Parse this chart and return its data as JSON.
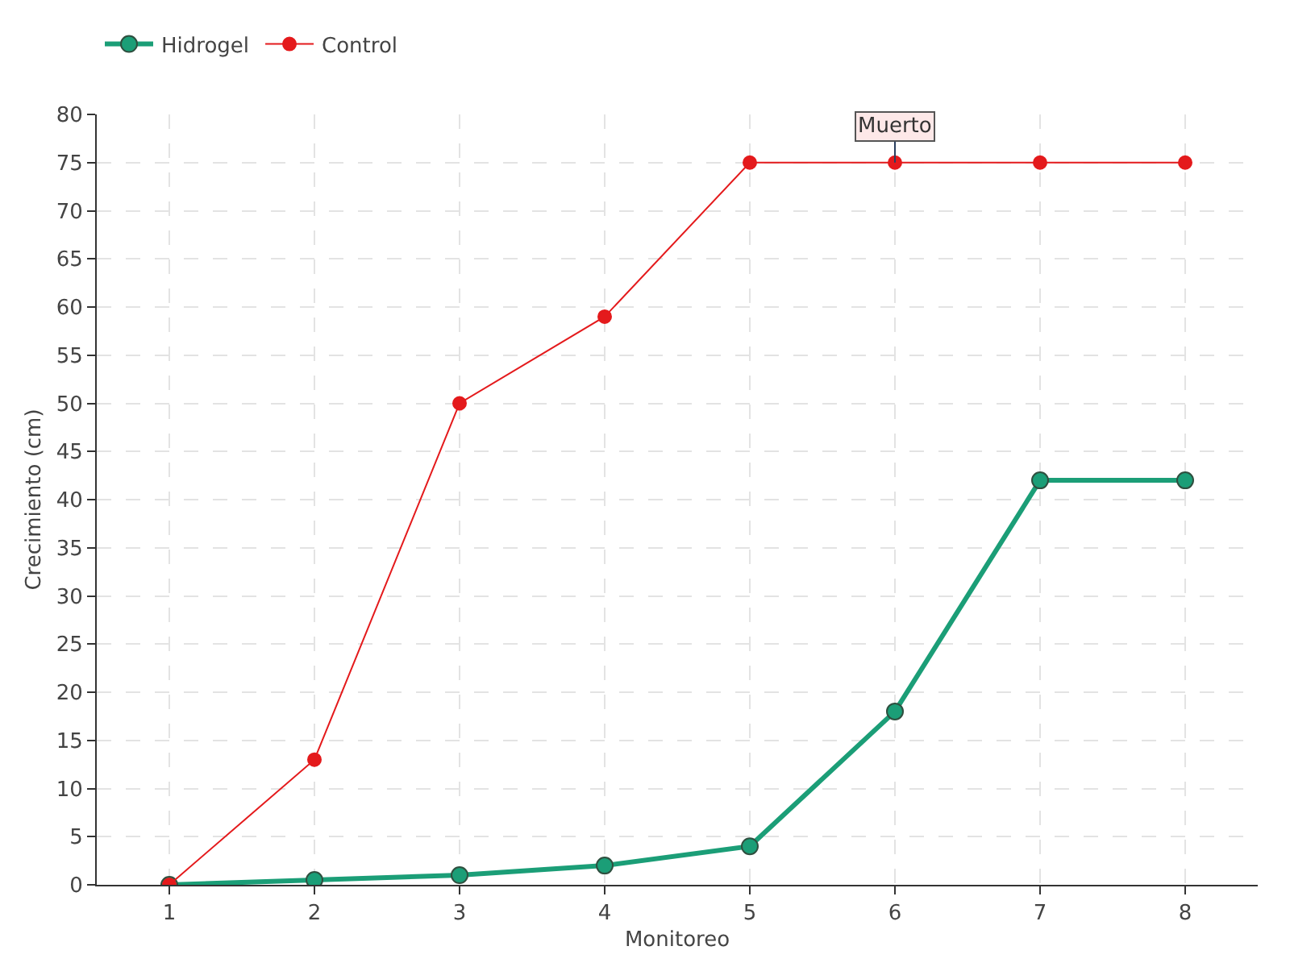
{
  "chart_data": {
    "type": "line",
    "xlabel": "Monitoreo",
    "ylabel": "Crecimiento (cm)",
    "x": [
      1,
      2,
      3,
      4,
      5,
      6,
      7,
      8
    ],
    "series": [
      {
        "name": "Hidrogel",
        "color": "#1b9e77",
        "values": [
          0,
          0.5,
          1,
          2,
          4,
          18,
          42,
          42
        ]
      },
      {
        "name": "Control",
        "color": "#e41a1c",
        "values": [
          0,
          13,
          50,
          59,
          75,
          75,
          75,
          75
        ]
      }
    ],
    "annotations": [
      {
        "text": "Muerto",
        "x": 6,
        "y": 75
      }
    ],
    "xlim": [
      0.5,
      8.5
    ],
    "xticks": [
      1,
      2,
      3,
      4,
      5,
      6,
      7,
      8
    ],
    "ylim": [
      0,
      80
    ],
    "yticks": [
      0,
      5,
      10,
      15,
      20,
      25,
      30,
      35,
      40,
      45,
      50,
      55,
      60,
      65,
      70,
      75,
      80
    ],
    "grid": true,
    "legend": "top left",
    "marker": "circle",
    "line_style": "solid"
  }
}
